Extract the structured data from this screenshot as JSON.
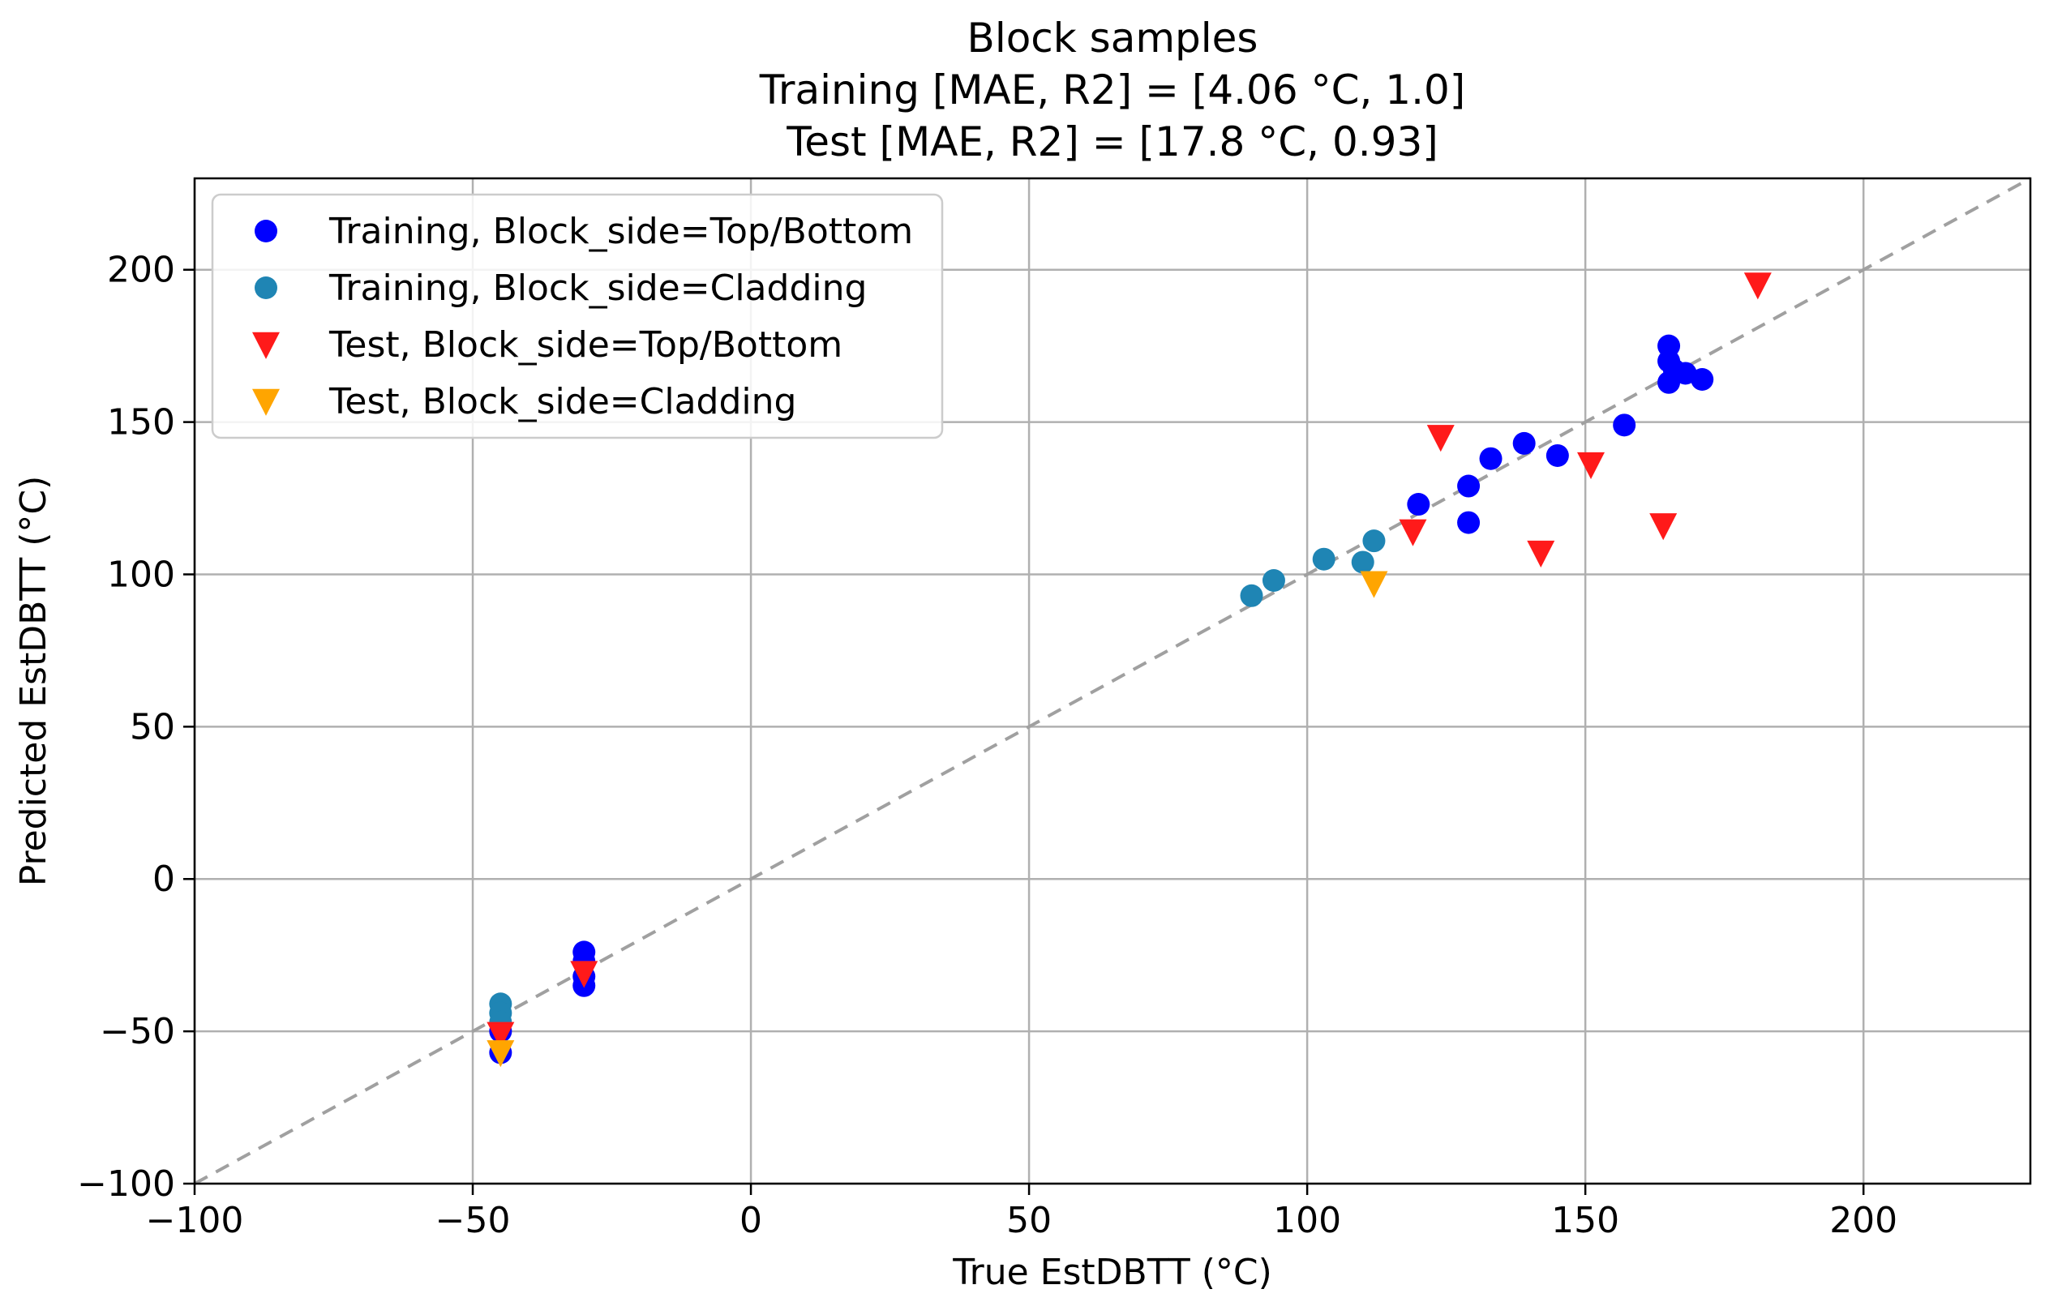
{
  "chart_data": {
    "type": "scatter",
    "title_lines": [
      "Block samples",
      "Training [MAE, R2] = [4.06 °C, 1.0]",
      "Test [MAE, R2] = [17.8 °C, 0.93]"
    ],
    "xlabel": "True EstDBTT (°C)",
    "ylabel": "Predicted EstDBTT (°C)",
    "xlim": [
      -100,
      230
    ],
    "ylim": [
      -100,
      230
    ],
    "xticks": [
      -100,
      -50,
      0,
      50,
      100,
      150,
      200
    ],
    "yticks": [
      -100,
      -50,
      0,
      50,
      100,
      150,
      200
    ],
    "xtick_labels": [
      "−100",
      "−50",
      "0",
      "50",
      "100",
      "150",
      "200"
    ],
    "ytick_labels": [
      "−100",
      "−50",
      "0",
      "50",
      "100",
      "150",
      "200"
    ],
    "grid": true,
    "reference_line": {
      "style": "dashed",
      "color": "#a0a0a0",
      "x": [
        -100,
        230
      ],
      "y": [
        -100,
        230
      ]
    },
    "legend_position": "top-left",
    "series": [
      {
        "name": "Training, Block_side=Top/Bottom",
        "marker": "circle",
        "color": "#0000ff",
        "points": [
          [
            -45,
            -57
          ],
          [
            -45,
            -50
          ],
          [
            -30,
            -24
          ],
          [
            -30,
            -27
          ],
          [
            -30,
            -32
          ],
          [
            -30,
            -35
          ],
          [
            120,
            123
          ],
          [
            129,
            129
          ],
          [
            129,
            117
          ],
          [
            133,
            138
          ],
          [
            139,
            143
          ],
          [
            145,
            139
          ],
          [
            157,
            149
          ],
          [
            165,
            175
          ],
          [
            165,
            170
          ],
          [
            165,
            163
          ],
          [
            166,
            167
          ],
          [
            168,
            166
          ],
          [
            171,
            164
          ]
        ]
      },
      {
        "name": "Training, Block_side=Cladding",
        "marker": "circle",
        "color": "#1f85b4",
        "points": [
          [
            -45,
            -41
          ],
          [
            -45,
            -44
          ],
          [
            -45,
            -47
          ],
          [
            90,
            93
          ],
          [
            94,
            98
          ],
          [
            103,
            105
          ],
          [
            110,
            104
          ],
          [
            112,
            111
          ]
        ]
      },
      {
        "name": "Test, Block_side=Top/Bottom",
        "marker": "triangle-down",
        "color": "#ff1a1a",
        "points": [
          [
            -45,
            -51
          ],
          [
            -30,
            -31
          ],
          [
            119,
            114
          ],
          [
            124,
            145
          ],
          [
            142,
            107
          ],
          [
            151,
            136
          ],
          [
            164,
            116
          ],
          [
            181,
            195
          ]
        ]
      },
      {
        "name": "Test, Block_side=Cladding",
        "marker": "triangle-down",
        "color": "#ffa500",
        "points": [
          [
            -45,
            -57
          ],
          [
            112,
            97
          ]
        ]
      }
    ]
  }
}
